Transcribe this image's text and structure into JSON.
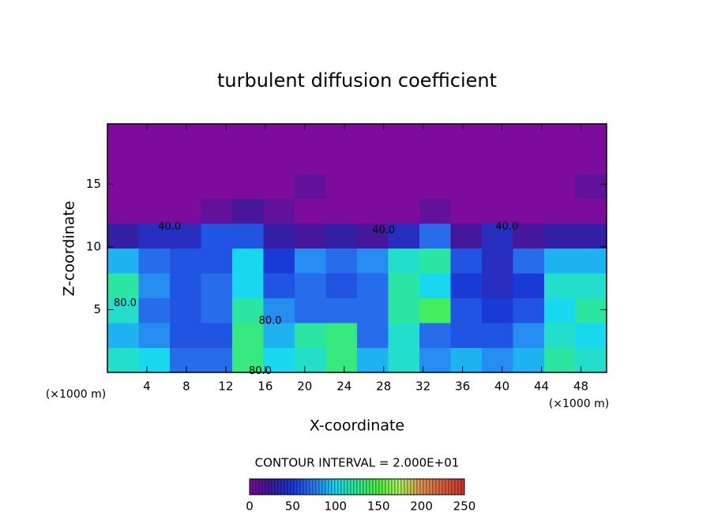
{
  "chart_data": {
    "type": "contour",
    "title": "turbulent diffusion coefficient",
    "x_label": "X-coordinate",
    "y_label": "Z-coordinate",
    "x_unit": "(×1000 m)",
    "y_unit": "(×1000 m)",
    "contour_interval": "CONTOUR INTERVAL = 2.000E+01",
    "xlim": [
      0,
      50.6
    ],
    "ylim": [
      0,
      19.8
    ],
    "xticks": [
      4,
      8,
      12,
      16,
      20,
      24,
      28,
      32,
      36,
      40,
      44,
      48
    ],
    "yticks": [
      5,
      10,
      15
    ],
    "x": [
      1.58,
      4.74,
      7.91,
      11.07,
      14.23,
      17.39,
      20.56,
      23.72,
      26.88,
      30.04,
      33.21,
      36.37,
      39.53,
      42.69,
      45.86,
      49.02
    ],
    "y": [
      0.99,
      2.97,
      4.95,
      6.93,
      8.91,
      10.89,
      12.87,
      14.85,
      16.83,
      18.81
    ],
    "z": [
      [
        110,
        100,
        70,
        70,
        130,
        100,
        110,
        130,
        90,
        110,
        80,
        90,
        80,
        90,
        120,
        110
      ],
      [
        90,
        80,
        60,
        60,
        130,
        90,
        120,
        130,
        70,
        110,
        70,
        60,
        60,
        80,
        110,
        100
      ],
      [
        110,
        70,
        60,
        70,
        120,
        80,
        70,
        70,
        70,
        120,
        140,
        60,
        50,
        60,
        100,
        120
      ],
      [
        120,
        80,
        60,
        70,
        100,
        60,
        70,
        60,
        70,
        120,
        100,
        50,
        40,
        50,
        110,
        110
      ],
      [
        90,
        70,
        60,
        60,
        100,
        50,
        80,
        70,
        80,
        110,
        120,
        60,
        40,
        70,
        90,
        90
      ],
      [
        30,
        40,
        40,
        60,
        60,
        30,
        20,
        30,
        20,
        40,
        70,
        20,
        40,
        20,
        30,
        30
      ],
      [
        0,
        0,
        0,
        10,
        20,
        10,
        0,
        0,
        0,
        0,
        10,
        0,
        0,
        0,
        0,
        0
      ],
      [
        0,
        0,
        0,
        0,
        0,
        0,
        10,
        0,
        0,
        0,
        0,
        0,
        0,
        0,
        0,
        10
      ],
      [
        0,
        0,
        0,
        0,
        0,
        0,
        0,
        0,
        0,
        0,
        0,
        0,
        0,
        0,
        0,
        0
      ],
      [
        0,
        0,
        0,
        0,
        0,
        0,
        0,
        0,
        0,
        0,
        0,
        0,
        0,
        0,
        0,
        0
      ]
    ],
    "contour_labels": [
      {
        "text": "40.0",
        "x": 6.3,
        "y": 11.6
      },
      {
        "text": "80.0",
        "x": 1.8,
        "y": 5.5
      },
      {
        "text": "80.0",
        "x": 16.5,
        "y": 4.1
      },
      {
        "text": "80.0",
        "x": 15.5,
        "y": 0.1
      },
      {
        "text": "40.0",
        "x": 28.0,
        "y": 11.3
      },
      {
        "text": "40.0",
        "x": 40.5,
        "y": 11.6
      }
    ],
    "colorscale": [
      [
        0,
        "#7d0b9e"
      ],
      [
        25,
        "#3a1a9a"
      ],
      [
        50,
        "#1a3ad8"
      ],
      [
        75,
        "#2a7af0"
      ],
      [
        100,
        "#18d8f0"
      ],
      [
        125,
        "#30e890"
      ],
      [
        150,
        "#50f040"
      ],
      [
        175,
        "#b0f060"
      ],
      [
        200,
        "#e09050"
      ],
      [
        250,
        "#d03030"
      ]
    ],
    "colorbar_lim": [
      0,
      250
    ],
    "colorbar_ticks": [
      0,
      50,
      100,
      150,
      200,
      250
    ]
  }
}
